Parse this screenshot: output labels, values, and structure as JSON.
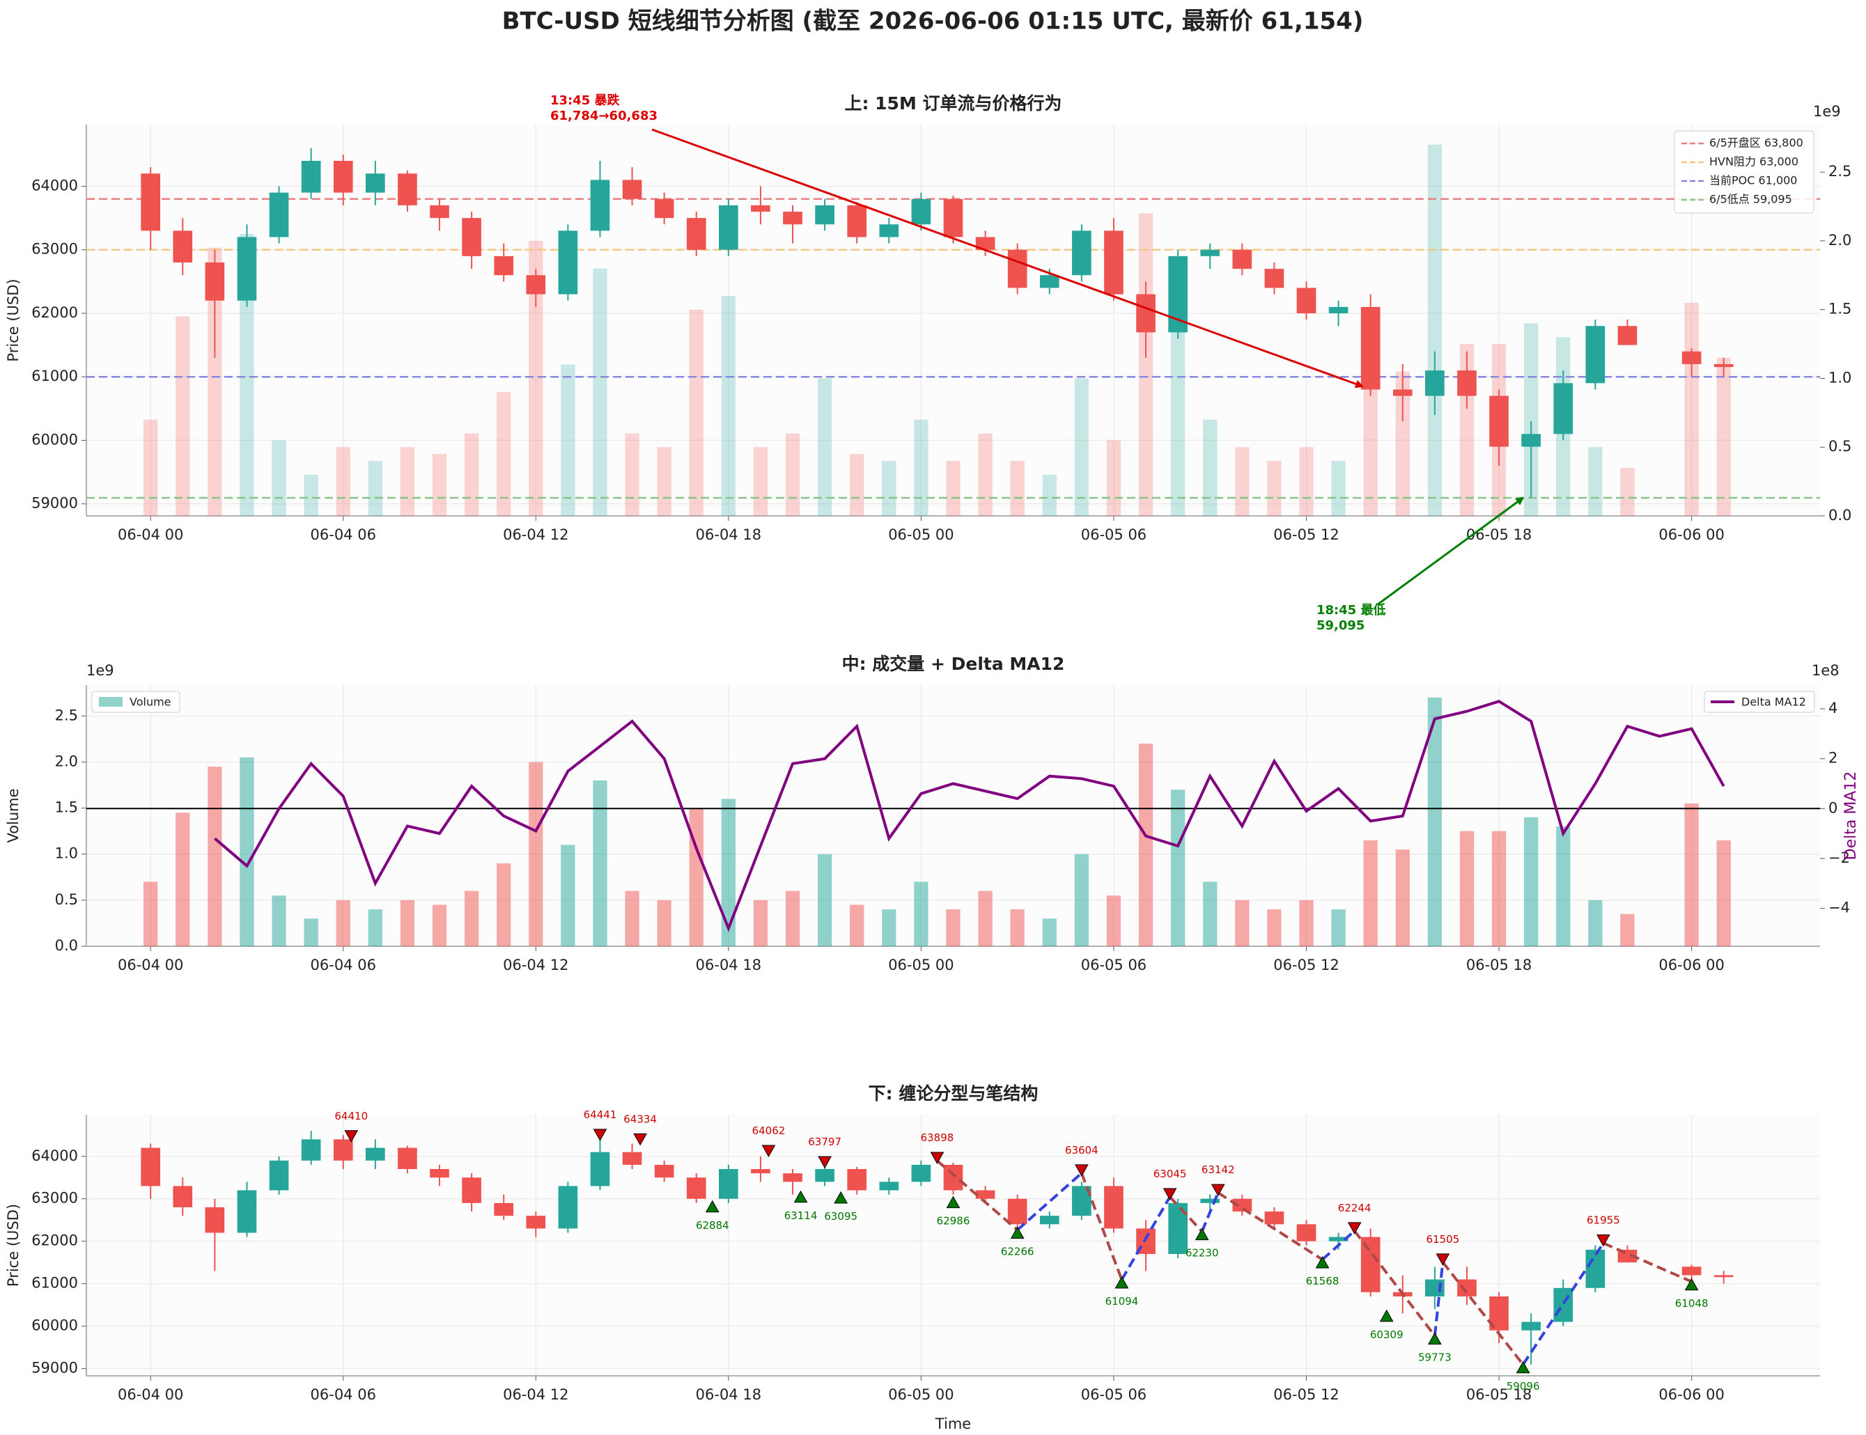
{
  "chart_data": {
    "type": "multi-panel",
    "title": "BTC-USD 短线细节分析图 (截至 2026-06-06 01:15 UTC, 最新价 61,154)",
    "x": [
      "06-04 00",
      "06-04 01",
      "06-04 02",
      "06-04 03",
      "06-04 04",
      "06-04 05",
      "06-04 06",
      "06-04 07",
      "06-04 08",
      "06-04 09",
      "06-04 10",
      "06-04 11",
      "06-04 12",
      "06-04 13",
      "06-04 14",
      "06-04 15",
      "06-04 16",
      "06-04 17",
      "06-04 18",
      "06-04 19",
      "06-04 20",
      "06-04 21",
      "06-04 22",
      "06-04 23",
      "06-05 00",
      "06-05 01",
      "06-05 02",
      "06-05 03",
      "06-05 04",
      "06-05 05",
      "06-05 06",
      "06-05 07",
      "06-05 08",
      "06-05 09",
      "06-05 10",
      "06-05 11",
      "06-05 12",
      "06-05 13",
      "06-05 14",
      "06-05 15",
      "06-05 16",
      "06-05 17",
      "06-05 18",
      "06-05 19",
      "06-05 20",
      "06-05 21",
      "06-05 22",
      "06-05 23",
      "06-06 00",
      "06-06 01"
    ],
    "xlim": [
      "06-03 22",
      "06-06 04"
    ],
    "xticks": [
      "06-04 00",
      "06-04 06",
      "06-04 12",
      "06-04 18",
      "06-05 00",
      "06-05 06",
      "06-05 12",
      "06-05 18",
      "06-06 00"
    ],
    "xlabel": "Time",
    "up_color": "#26a69a",
    "down_color": "#ef5350",
    "grid": true,
    "open": [
      64200,
      63300,
      62800,
      62200,
      63200,
      63900,
      64400,
      63900,
      64200,
      63700,
      63500,
      62900,
      62600,
      62300,
      63300,
      64100,
      63800,
      63500,
      63000,
      63700,
      63600,
      63400,
      63700,
      63200,
      63400,
      63800,
      63200,
      63000,
      62400,
      62600,
      63300,
      62300,
      61700,
      62900,
      63000,
      62700,
      62400,
      62000,
      62100,
      60800,
      60700,
      61100,
      60700,
      59900,
      60100,
      60900,
      61800,
      null,
      61400,
      61200
    ],
    "high": [
      64300,
      63500,
      63000,
      63400,
      64000,
      64600,
      64500,
      64400,
      64250,
      63800,
      63600,
      63100,
      62700,
      63400,
      64400,
      64300,
      63900,
      63600,
      63800,
      64000,
      63700,
      63800,
      63750,
      63500,
      63900,
      63850,
      63300,
      63100,
      62700,
      63400,
      63500,
      62500,
      63000,
      63100,
      63100,
      62800,
      62500,
      62200,
      62300,
      61200,
      61400,
      61400,
      60800,
      60300,
      61100,
      61900,
      61900,
      null,
      61450,
      61300
    ],
    "low": [
      63000,
      62600,
      61300,
      62100,
      63100,
      63800,
      63700,
      63700,
      63600,
      63300,
      62700,
      62500,
      62100,
      62200,
      63200,
      63700,
      63400,
      62900,
      62900,
      63400,
      63100,
      63300,
      63100,
      63100,
      63300,
      63100,
      62900,
      62300,
      62300,
      62500,
      62200,
      61300,
      61600,
      62700,
      62600,
      62300,
      61900,
      61800,
      60700,
      60300,
      60400,
      60500,
      59600,
      59095,
      60000,
      60800,
      61500,
      null,
      61000,
      61000
    ],
    "close": [
      63300,
      62800,
      62200,
      63200,
      63900,
      64400,
      63900,
      64200,
      63700,
      63500,
      62900,
      62600,
      62300,
      63300,
      64100,
      63800,
      63500,
      63000,
      63700,
      63600,
      63400,
      63700,
      63200,
      63400,
      63800,
      63200,
      63000,
      62400,
      62600,
      63300,
      62300,
      61700,
      62900,
      63000,
      62700,
      62400,
      62000,
      62100,
      60800,
      60700,
      61100,
      60700,
      59900,
      60100,
      60900,
      61800,
      61500,
      null,
      61200,
      61154
    ],
    "volume": [
      700000000,
      1450000000,
      1950000000,
      2050000000,
      550000000,
      300000000,
      500000000,
      400000000,
      500000000,
      450000000,
      600000000,
      900000000,
      2000000000,
      1100000000,
      1800000000,
      600000000,
      500000000,
      1500000000,
      1600000000,
      500000000,
      600000000,
      1000000000,
      450000000,
      400000000,
      700000000,
      400000000,
      600000000,
      400000000,
      300000000,
      1000000000,
      550000000,
      2200000000,
      1700000000,
      700000000,
      500000000,
      400000000,
      500000000,
      400000000,
      1150000000,
      1050000000,
      2700000000,
      1250000000,
      1250000000,
      1400000000,
      1300000000,
      500000000,
      350000000,
      null,
      1550000000,
      1150000000
    ],
    "delta_ma12": [
      null,
      null,
      -120000000,
      -230000000,
      0,
      180000000,
      50000000,
      -300000000,
      -70000000,
      -100000000,
      90000000,
      -30000000,
      -90000000,
      150000000,
      250000000,
      350000000,
      200000000,
      -160000000,
      -480000000,
      -150000000,
      180000000,
      200000000,
      330000000,
      -120000000,
      60000000,
      100000000,
      70000000,
      40000000,
      130000000,
      120000000,
      90000000,
      -110000000,
      -150000000,
      130000000,
      -70000000,
      190000000,
      -10000000,
      80000000,
      -50000000,
      -30000000,
      360000000,
      390000000,
      430000000,
      350000000,
      -100000000,
      100000000,
      330000000,
      290000000,
      320000000,
      90000000
    ],
    "panels": [
      {
        "type": "candlestick_volume",
        "title": "上: 15M 订单流与价格行为",
        "ylabel": "Price (USD)",
        "ylim": [
          58810,
          64970
        ],
        "yticks": [
          59000,
          60000,
          61000,
          62000,
          63000,
          64000
        ],
        "y2lim": [
          0,
          2845000000
        ],
        "y2ticks": [
          {
            "value": 0,
            "label": "0.0"
          },
          {
            "value": 500000000,
            "label": "0.5"
          },
          {
            "value": 1000000000,
            "label": "1.0"
          },
          {
            "value": 1500000000,
            "label": "1.5"
          },
          {
            "value": 2000000000,
            "label": "2.0"
          },
          {
            "value": 2500000000,
            "label": "2.5"
          }
        ],
        "y2_offset": "1e9",
        "volume_opacity": 0.25,
        "legend": "upper right",
        "levels": [
          {
            "name": "6/5开盘区 63,800",
            "value": 63800,
            "color": "#e88080"
          },
          {
            "name": "HVN阻力 63,000",
            "value": 63000,
            "color": "#f5c880"
          },
          {
            "name": "当前POC 61,000",
            "value": 61000,
            "color": "#8888e0"
          },
          {
            "name": "6/5低点 59,095",
            "value": 59095,
            "color": "#88c488"
          }
        ],
        "annotations": [
          {
            "lines": [
              "13:45 暴跌",
              "61,784→60,683"
            ],
            "x": "06-05 13:45",
            "y": 60850,
            "color": "#dd0000"
          },
          {
            "lines": [
              "18:45 最低",
              "59,095"
            ],
            "x": "06-05 18:45",
            "y": 59095,
            "color": "#008000"
          }
        ]
      },
      {
        "type": "volume_delta",
        "title": "中: 成交量 + Delta MA12",
        "ylabel": "Volume",
        "y2label": "Delta MA12",
        "ylim": [
          0,
          2835000000
        ],
        "yticks": [
          {
            "value": 0,
            "label": "0.0"
          },
          {
            "value": 500000000,
            "label": "0.5"
          },
          {
            "value": 1000000000,
            "label": "1.0"
          },
          {
            "value": 1500000000,
            "label": "1.5"
          },
          {
            "value": 2000000000,
            "label": "2.0"
          },
          {
            "value": 2500000000,
            "label": "2.5"
          }
        ],
        "y_offset": "1e9",
        "y2lim": [
          -552000000,
          495000000
        ],
        "y2ticks": [
          {
            "value": -400000000,
            "label": "−4"
          },
          {
            "value": -200000000,
            "label": "−2"
          },
          0,
          {
            "value": 200000000,
            "label": "2"
          },
          {
            "value": 400000000,
            "label": "4"
          }
        ],
        "y2_offset": "1e8",
        "volume_opacity": 0.5,
        "volume_name": "Volume",
        "line_name": "Delta MA12",
        "line_color": "#800080",
        "hline": 0
      },
      {
        "type": "candlestick_fractal",
        "title": "下: 缠论分型与笔结构",
        "ylabel": "Price (USD)",
        "ylim": [
          58830,
          64980
        ],
        "yticks": [
          59000,
          60000,
          61000,
          62000,
          63000,
          64000
        ],
        "tops": {
          "color": "#cc0000",
          "x": [
            "06-04 06:15",
            "06-04 14:00",
            "06-04 15:15",
            "06-04 19:15",
            "06-04 21:00",
            "06-05 00:30",
            "06-05 05:00",
            "06-05 07:45",
            "06-05 09:15",
            "06-05 13:30",
            "06-05 16:15",
            "06-05 21:15"
          ],
          "values": [
            64410,
            64441,
            64334,
            64062,
            63797,
            63898,
            63604,
            63045,
            63142,
            62244,
            61505,
            61955
          ]
        },
        "bottoms": {
          "color": "#007700",
          "x": [
            "06-04 17:30",
            "06-04 20:15",
            "06-04 21:30",
            "06-05 01:00",
            "06-05 03:00",
            "06-05 06:15",
            "06-05 08:45",
            "06-05 12:30",
            "06-05 14:30",
            "06-05 16:00",
            "06-05 18:45",
            "06-06 00:00"
          ],
          "values": [
            62884,
            63114,
            63095,
            62986,
            62266,
            61094,
            62230,
            61568,
            60309,
            59773,
            59096,
            61048
          ]
        },
        "bi": {
          "up_color": "#3344dd",
          "down_color": "#b04848",
          "x": [
            "06-05 00:30",
            "06-05 03:00",
            "06-05 05:00",
            "06-05 06:15",
            "06-05 07:45",
            "06-05 08:45",
            "06-05 09:15",
            "06-05 12:30",
            "06-05 13:30",
            "06-05 16:00",
            "06-05 16:15",
            "06-05 18:45",
            "06-05 21:15",
            "06-06 00:00"
          ],
          "values": [
            63898,
            62266,
            63604,
            61094,
            63045,
            62230,
            63142,
            61568,
            62244,
            59773,
            61505,
            59096,
            61955,
            61048
          ]
        }
      }
    ]
  }
}
